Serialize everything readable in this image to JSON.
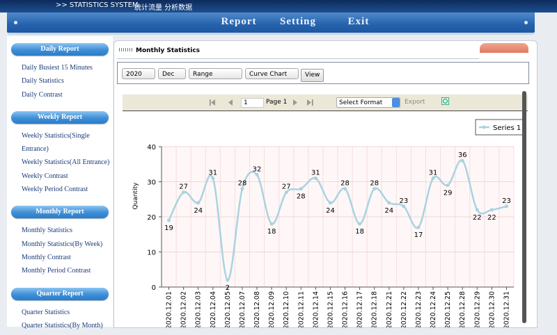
{
  "header": {
    "title": ">> STATISTICS SYSTEM",
    "subtitle": "统计流量 分析数据"
  },
  "nav": [
    "Report",
    "Setting",
    "Exit"
  ],
  "sidebar": [
    {
      "title": "Daily Report",
      "items": [
        "Daily Busiest 15 Minutes",
        "Daily Statistics",
        "Daily Contrast"
      ]
    },
    {
      "title": "Weekly Report",
      "items": [
        "Weekly Statistics(Single Entrance)",
        "Weekly Statistics(All Entrance)",
        "Weekly Contrast",
        "Weekly Period Contrast"
      ]
    },
    {
      "title": "Monthly Report",
      "items": [
        "Monthly Statistics",
        "Monthly Statistics(By Week)",
        "Monthly Contrast",
        "Monthly Period Contrast"
      ]
    },
    {
      "title": "Quarter Report",
      "items": [
        "Quarter Statistics",
        "Quarter Statistics(By Month)"
      ]
    }
  ],
  "panel": {
    "title": "Monthly Statistics",
    "filters": [
      "2020",
      "Dec",
      "Range",
      "Curve Chart"
    ],
    "view_button": "View",
    "pager": {
      "page_input": "1",
      "page_label": "Page 1",
      "format": "Select Format",
      "export": "Export"
    }
  },
  "chart_data": {
    "type": "line",
    "y_label": "Quantity",
    "categories": [
      "2020.12.01",
      "2020.12.02",
      "2020.12.03",
      "2020.12.04",
      "2020.12.05",
      "2020.12.07",
      "2020.12.08",
      "2020.12.09",
      "2020.12.10",
      "2020.12.11",
      "2020.12.14",
      "2020.12.15",
      "2020.12.16",
      "2020.12.17",
      "2020.12.18",
      "2020.12.21",
      "2020.12.22",
      "2020.12.23",
      "2020.12.24",
      "2020.12.25",
      "2020.12.28",
      "2020.12.29",
      "2020.12.30",
      "2020.12.31"
    ],
    "series": [
      {
        "name": "Series 1",
        "color": "#a9d3e0",
        "values": [
          19,
          27,
          24,
          31,
          2,
          28,
          32,
          18,
          27,
          28,
          31,
          24,
          28,
          18,
          28,
          24,
          23,
          17,
          31,
          29,
          36,
          22,
          22,
          23
        ]
      }
    ],
    "ylim": [
      0,
      40
    ],
    "yticks": [
      0,
      10,
      20,
      30,
      40
    ],
    "grid": true,
    "smooth": true,
    "legend": "top-right"
  }
}
